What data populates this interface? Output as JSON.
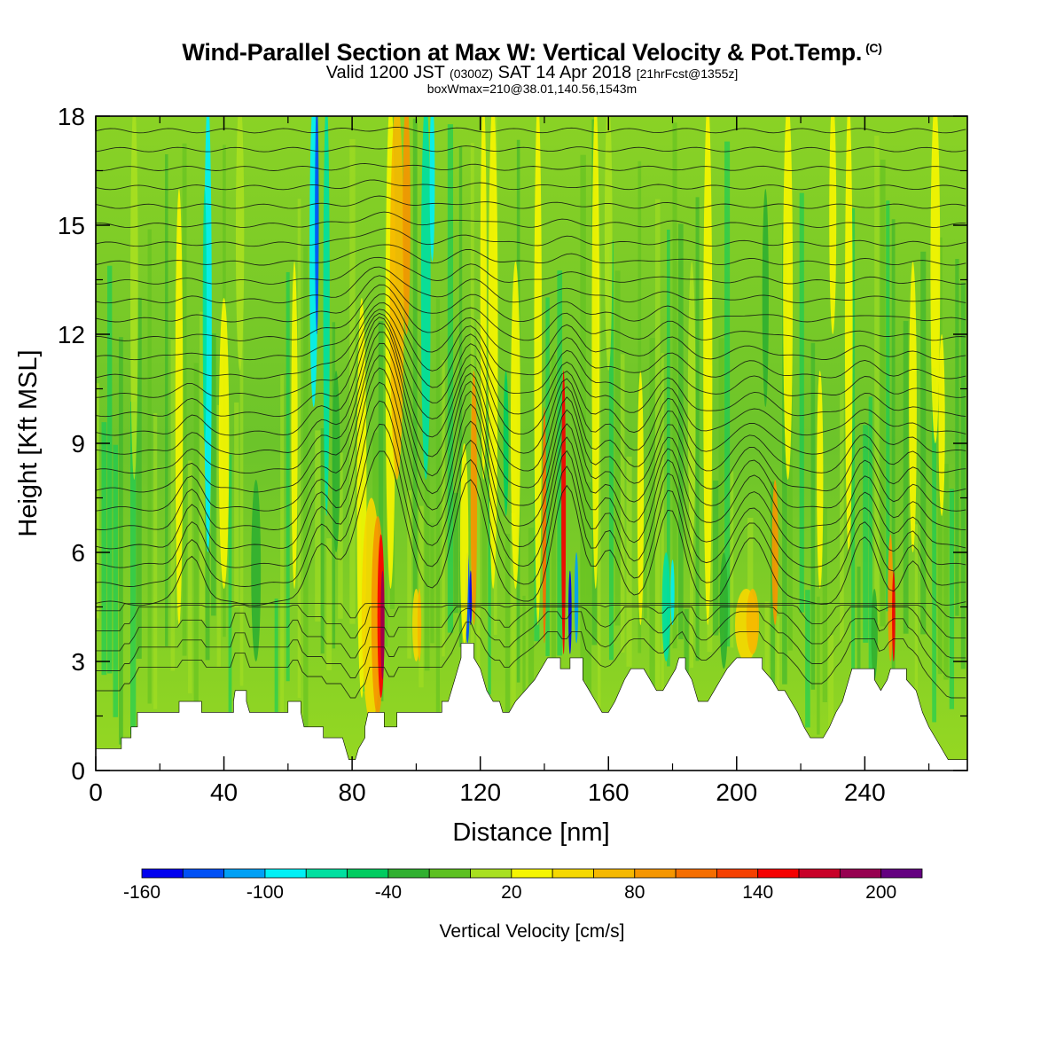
{
  "titles": {
    "main": "Wind-Parallel Section at Max W: Vertical Velocity & Pot.Temp.",
    "main_tag": "(C)",
    "valid_pre": "Valid 1200 JST",
    "valid_utc": "(0300Z)",
    "valid_date": "SAT 14 Apr 2018",
    "valid_fcst": "[21hrFcst@1355z]",
    "box": "boxWmax=210@38.01,140.56,1543m"
  },
  "chart_data": {
    "type": "heatmap",
    "xlabel": "Distance [nm]",
    "ylabel": "Height [Kft MSL]",
    "xlim": [
      0,
      272
    ],
    "ylim": [
      0,
      18
    ],
    "x_ticks": [
      "0",
      "40",
      "80",
      "120",
      "160",
      "200",
      "240"
    ],
    "y_ticks": [
      "0",
      "3",
      "6",
      "9",
      "12",
      "15",
      "18"
    ],
    "colorbar": {
      "title": "Vertical Velocity [cm/s]",
      "labels": [
        "-160",
        "-100",
        "-40",
        "20",
        "80",
        "140",
        "200"
      ],
      "label_values": [
        -160,
        -100,
        -40,
        20,
        80,
        140,
        200
      ],
      "range": [
        -160,
        220
      ],
      "colors": [
        "#0000ee",
        "#0050f5",
        "#00a0f5",
        "#00f0f5",
        "#00e0a0",
        "#00cc60",
        "#30b030",
        "#5cc020",
        "#a8e020",
        "#f5f500",
        "#f5d800",
        "#f5b800",
        "#f59600",
        "#f56e00",
        "#f54000",
        "#f50000",
        "#c80028",
        "#960050",
        "#640080"
      ]
    },
    "terrain_kft": [
      [
        0,
        0.6
      ],
      [
        8,
        0.6
      ],
      [
        8,
        0.9
      ],
      [
        11,
        0.9
      ],
      [
        11,
        1.2
      ],
      [
        13,
        1.2
      ],
      [
        13,
        1.6
      ],
      [
        26,
        1.6
      ],
      [
        26,
        1.9
      ],
      [
        33,
        1.9
      ],
      [
        33,
        1.6
      ],
      [
        43,
        1.6
      ],
      [
        43,
        1.9
      ],
      [
        43.5,
        2.2
      ],
      [
        47,
        2.2
      ],
      [
        47,
        1.9
      ],
      [
        48,
        1.6
      ],
      [
        60,
        1.6
      ],
      [
        60,
        1.9
      ],
      [
        64,
        1.9
      ],
      [
        64,
        1.6
      ],
      [
        65,
        1.2
      ],
      [
        71,
        1.2
      ],
      [
        71,
        0.9
      ],
      [
        77,
        0.9
      ],
      [
        78,
        0.6
      ],
      [
        79,
        0.3
      ],
      [
        81,
        0.3
      ],
      [
        82,
        0.6
      ],
      [
        84,
        0.9
      ],
      [
        84,
        1.2
      ],
      [
        85,
        1.6
      ],
      [
        90,
        1.6
      ],
      [
        90,
        1.2
      ],
      [
        94,
        1.2
      ],
      [
        94,
        1.6
      ],
      [
        108,
        1.6
      ],
      [
        108,
        1.9
      ],
      [
        110,
        1.9
      ],
      [
        112,
        2.5
      ],
      [
        114,
        3.1
      ],
      [
        114,
        3.5
      ],
      [
        118,
        3.5
      ],
      [
        118,
        3.1
      ],
      [
        120,
        2.8
      ],
      [
        121,
        2.5
      ],
      [
        122,
        2.2
      ],
      [
        124,
        1.9
      ],
      [
        126,
        1.9
      ],
      [
        127,
        1.6
      ],
      [
        129,
        1.6
      ],
      [
        131,
        1.9
      ],
      [
        134,
        2.2
      ],
      [
        137,
        2.5
      ],
      [
        139,
        2.8
      ],
      [
        141,
        3.1
      ],
      [
        145,
        3.1
      ],
      [
        145,
        2.8
      ],
      [
        148,
        2.8
      ],
      [
        148,
        3.1
      ],
      [
        152,
        3.1
      ],
      [
        152,
        2.5
      ],
      [
        154,
        2.2
      ],
      [
        156,
        1.9
      ],
      [
        158,
        1.6
      ],
      [
        160,
        1.6
      ],
      [
        162,
        1.9
      ],
      [
        165,
        2.5
      ],
      [
        167,
        2.8
      ],
      [
        171,
        2.8
      ],
      [
        173,
        2.5
      ],
      [
        175,
        2.2
      ],
      [
        177,
        2.2
      ],
      [
        179,
        2.5
      ],
      [
        181,
        2.8
      ],
      [
        182,
        3.1
      ],
      [
        184,
        3.1
      ],
      [
        184,
        2.8
      ],
      [
        186,
        2.5
      ],
      [
        187,
        2.2
      ],
      [
        188,
        1.9
      ],
      [
        191,
        1.9
      ],
      [
        193,
        2.2
      ],
      [
        195,
        2.5
      ],
      [
        197,
        2.8
      ],
      [
        200,
        3.1
      ],
      [
        208,
        3.1
      ],
      [
        208,
        2.8
      ],
      [
        211,
        2.5
      ],
      [
        213,
        2.2
      ],
      [
        215,
        2.2
      ],
      [
        217,
        1.9
      ],
      [
        219,
        1.6
      ],
      [
        221,
        1.2
      ],
      [
        223,
        0.9
      ],
      [
        227,
        0.9
      ],
      [
        229,
        1.2
      ],
      [
        231,
        1.6
      ],
      [
        233,
        1.9
      ],
      [
        235,
        2.5
      ],
      [
        236,
        2.8
      ],
      [
        243,
        2.8
      ],
      [
        243,
        2.5
      ],
      [
        245,
        2.2
      ],
      [
        247,
        2.5
      ],
      [
        248,
        2.8
      ],
      [
        253,
        2.8
      ],
      [
        253,
        2.5
      ],
      [
        256,
        2.2
      ],
      [
        258,
        1.6
      ],
      [
        260,
        1.2
      ],
      [
        262,
        0.9
      ],
      [
        264,
        0.6
      ],
      [
        266,
        0.3
      ],
      [
        272,
        0.3
      ]
    ]
  }
}
